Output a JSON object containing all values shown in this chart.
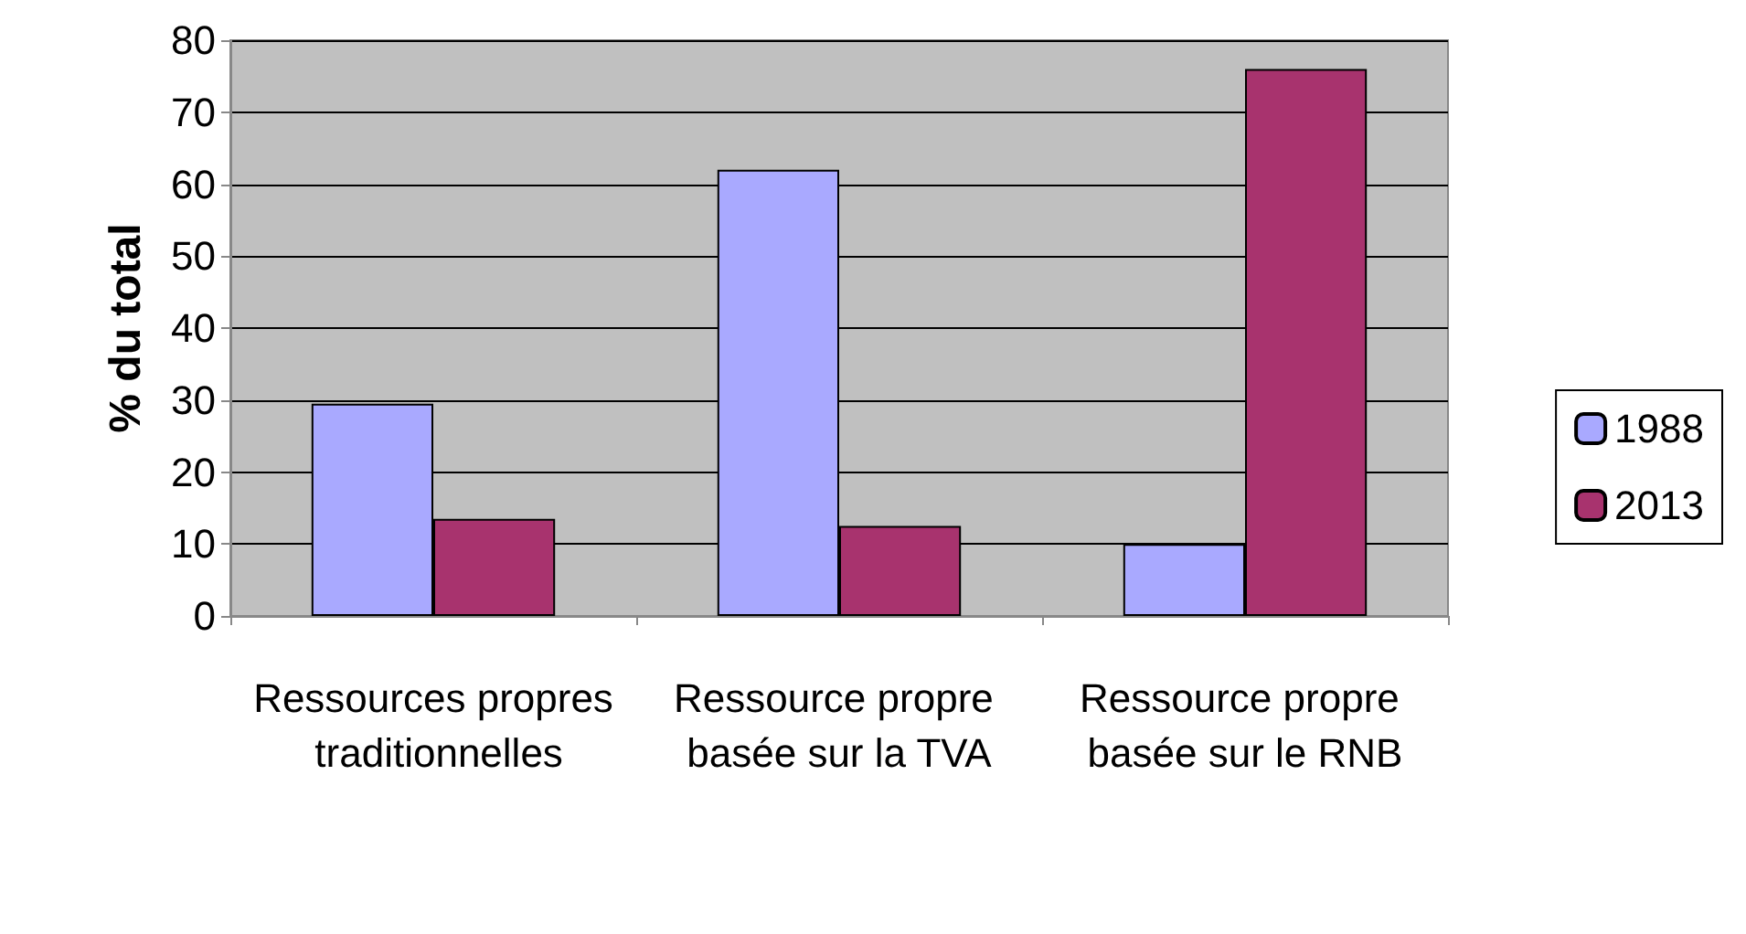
{
  "chart_data": {
    "type": "bar",
    "ylabel": "% du total",
    "categories": [
      "Ressources propres traditionnelles",
      "Ressource propre basée sur la TVA",
      "Ressource propre basée sur le RNB"
    ],
    "series": [
      {
        "name": "1988",
        "color": "#a9a9ff",
        "values": [
          29.5,
          62,
          10
        ]
      },
      {
        "name": "2013",
        "color": "#a8336e",
        "values": [
          13.5,
          12.5,
          76
        ]
      }
    ],
    "ylim": [
      0,
      80
    ],
    "yticks": [
      0,
      10,
      20,
      30,
      40,
      50,
      60,
      70,
      80
    ],
    "grid": "y",
    "legend": "right"
  }
}
